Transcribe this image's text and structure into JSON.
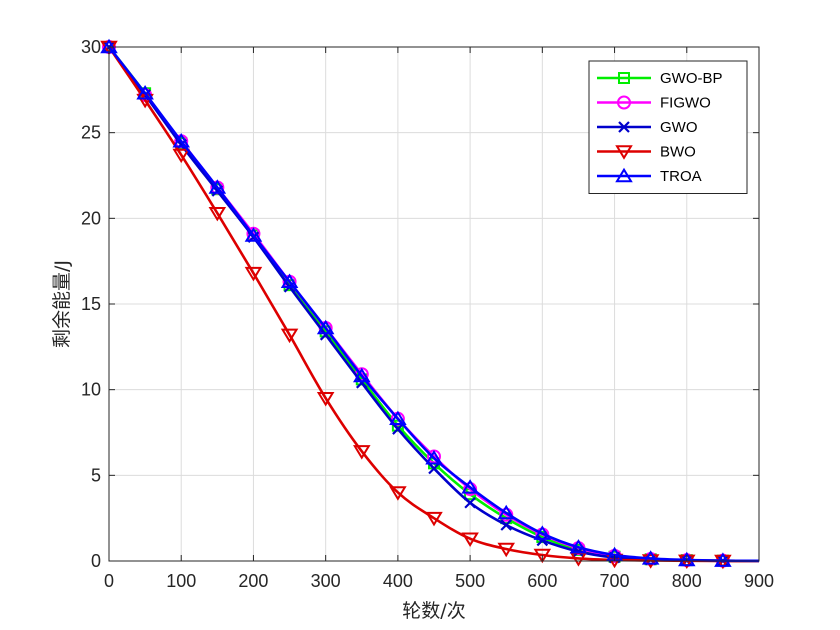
{
  "chart_data": {
    "type": "line",
    "title": "",
    "xlabel": "轮数/次",
    "ylabel": "剩余能量/J",
    "xlim": [
      0,
      900
    ],
    "ylim": [
      0,
      30
    ],
    "xticks": [
      0,
      100,
      200,
      300,
      400,
      500,
      600,
      700,
      800,
      900
    ],
    "yticks": [
      0,
      5,
      10,
      15,
      20,
      25,
      30
    ],
    "xtick_labels": [
      "0",
      "100",
      "200",
      "300",
      "400",
      "500",
      "600",
      "700",
      "800",
      "900"
    ],
    "ytick_labels": [
      "0",
      "5",
      "10",
      "15",
      "20",
      "25",
      "30"
    ],
    "grid": true,
    "legend_position": "top-right",
    "x": [
      0,
      50,
      100,
      150,
      200,
      250,
      300,
      350,
      400,
      450,
      500,
      550,
      600,
      650,
      700,
      750,
      800,
      850,
      900
    ],
    "series": [
      {
        "name": "GWO-BP",
        "color": "#00ee00",
        "marker": "square",
        "marker_every": 50,
        "values": [
          30,
          27.3,
          24.4,
          21.7,
          19.0,
          16.1,
          13.4,
          10.6,
          7.9,
          5.7,
          3.9,
          2.5,
          1.4,
          0.65,
          0.25,
          0.1,
          0.05,
          0.02,
          0.01
        ]
      },
      {
        "name": "FIGWO",
        "color": "#ff00ff",
        "marker": "circle",
        "marker_every": 50,
        "values": [
          30,
          27.2,
          24.5,
          21.8,
          19.1,
          16.3,
          13.6,
          10.9,
          8.3,
          6.1,
          4.2,
          2.7,
          1.55,
          0.75,
          0.3,
          0.12,
          0.05,
          0.02,
          0.01
        ]
      },
      {
        "name": "GWO",
        "color": "#0000cc",
        "marker": "x",
        "marker_every": 50,
        "values": [
          30,
          27.2,
          24.3,
          21.6,
          18.9,
          16.0,
          13.2,
          10.4,
          7.7,
          5.4,
          3.4,
          2.1,
          1.2,
          0.55,
          0.2,
          0.08,
          0.03,
          0.01,
          0.0
        ]
      },
      {
        "name": "BWO",
        "color": "#dd0000",
        "marker": "triangle-down",
        "marker_every": 50,
        "values": [
          30,
          26.9,
          23.7,
          20.3,
          16.8,
          13.2,
          9.5,
          6.4,
          4.0,
          2.5,
          1.3,
          0.7,
          0.35,
          0.15,
          0.06,
          0.03,
          0.01,
          0.0,
          0.0
        ]
      },
      {
        "name": "TROA",
        "color": "#0000ff",
        "marker": "triangle-up",
        "marker_every": 50,
        "values": [
          30,
          27.3,
          24.5,
          21.8,
          19.0,
          16.3,
          13.6,
          10.8,
          8.3,
          6.0,
          4.3,
          2.8,
          1.6,
          0.8,
          0.35,
          0.15,
          0.06,
          0.02,
          0.01
        ]
      }
    ]
  }
}
